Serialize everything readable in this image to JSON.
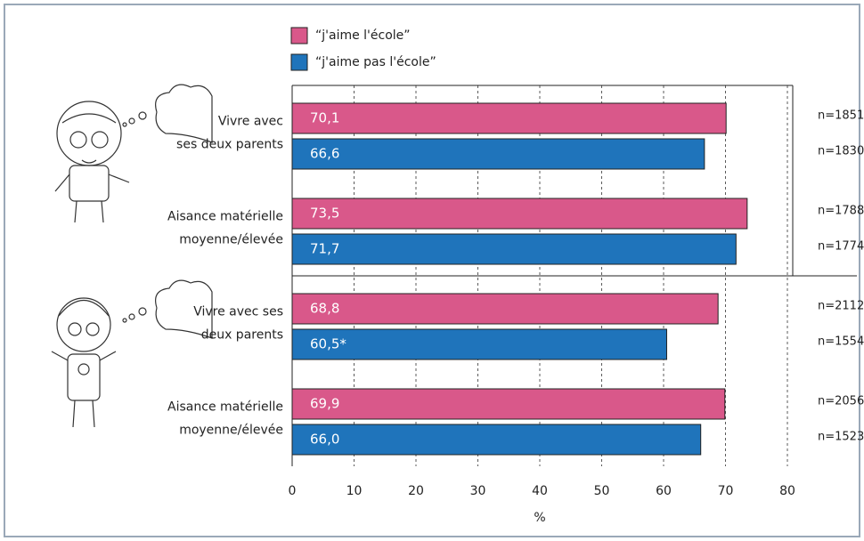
{
  "chart_data": {
    "type": "bar",
    "orientation": "horizontal",
    "categories": [
      "Vivre avec\nses deux parents",
      "Aisance matérielle\nmoyenne/élevée",
      "Vivre avec ses\ndeux parents",
      "Aisance matérielle\nmoyenne/élevée"
    ],
    "series": [
      {
        "name": "“j'aime l'école”",
        "color": "#d9588a",
        "values": [
          70.1,
          73.5,
          68.8,
          69.9
        ],
        "value_labels": [
          "70,1",
          "73,5",
          "68,8",
          "69,9"
        ],
        "n_labels": [
          "n=1851",
          "n=1788",
          "n=2112",
          "n=2056"
        ]
      },
      {
        "name": "“j'aime pas l'école”",
        "color": "#1f74bb",
        "values": [
          66.6,
          71.7,
          60.5,
          66.0
        ],
        "value_labels": [
          "66,6",
          "71,7",
          "60,5*",
          "66,0"
        ],
        "n_labels": [
          "n=1830",
          "n=1774",
          "n=1554",
          "n=1523"
        ]
      }
    ],
    "xlabel": "%",
    "xlim": [
      0,
      80
    ],
    "xticks": [
      0,
      10,
      20,
      30,
      40,
      50,
      60,
      70,
      80
    ],
    "grid": true
  }
}
